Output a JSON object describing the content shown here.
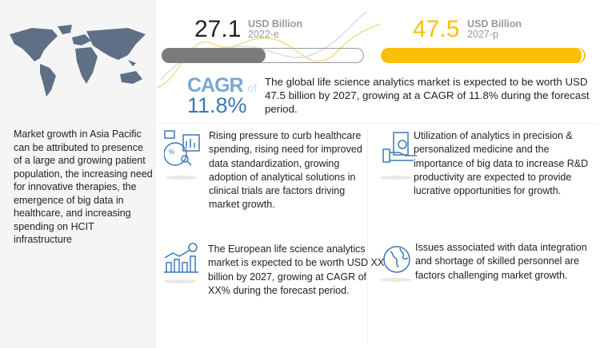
{
  "left_panel": {
    "map_icon": "world-map",
    "text": "Market growth in Asia Pacific can be attributed to presence of a large and growing patient population, the increasing need for innovative therapies, the emergence of big data in healthcare, and  increasing spending on HCIT infrastructure"
  },
  "market": {
    "current": {
      "value": "27.1",
      "unit": "USD Billion",
      "year": "2022-e"
    },
    "projected": {
      "value": "47.5",
      "unit": "USD Billion",
      "year": "2027-p"
    },
    "cagr_label": "CAGR",
    "cagr_of": "of",
    "cagr_value": "11.8%",
    "summary": "The global life science analytics market is expected to be worth USD 47.5 billion by 2027, growing at a CAGR of 11.8% during the forecast period.",
    "colors": {
      "current_bar": "#7b7b7b",
      "projected_bar": "#fbbf0a",
      "cagr": "#3c78b5"
    }
  },
  "factors": [
    {
      "icon": "analytics-chart-icon",
      "text": "Rising pressure to curb healthcare spending, rising need for improved data standardization, growing adoption of analytical solutions in clinical trials are factors driving market growth."
    },
    {
      "icon": "money-hand-icon",
      "text": "Utilization of analytics in precision & personalized medicine and the importance of big data to increase R&D productivity are expected to provide lucrative opportunities for growth."
    },
    {
      "icon": "growth-bar-chart-icon",
      "text": "The European life science analytics market is expected  to be worth USD XX billion by 2027, growing at CAGR of XX% during the forecast period."
    },
    {
      "icon": "globe-icon",
      "text": "Issues associated with data integration and shortage of skilled personnel are factors challenging market growth."
    }
  ]
}
